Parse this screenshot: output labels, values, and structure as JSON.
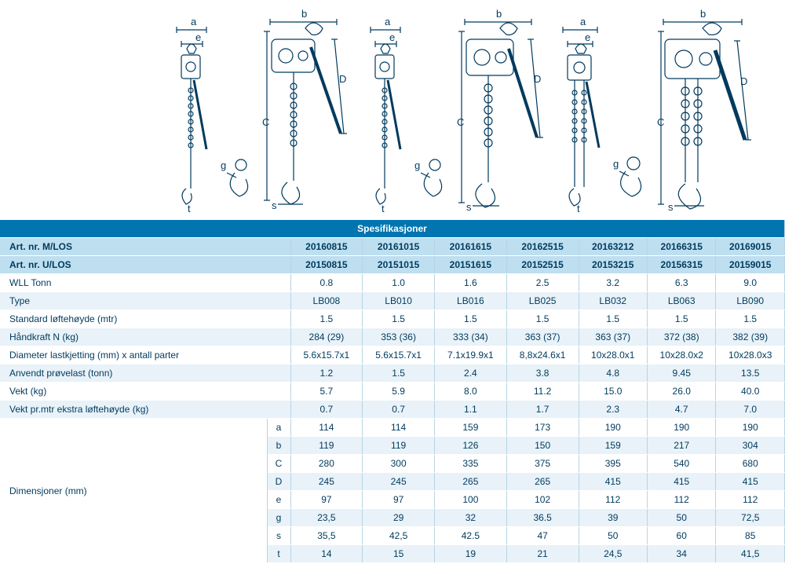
{
  "header": "Spesifikasjoner",
  "columns_mlos": [
    "20160815",
    "20161015",
    "20161615",
    "20162515",
    "20163212",
    "20166315",
    "20169015"
  ],
  "columns_ulos": [
    "20150815",
    "20151015",
    "20151615",
    "20152515",
    "20153215",
    "20156315",
    "20159015"
  ],
  "label_mlos": "Art. nr. M/LOS",
  "label_ulos": "Art. nr. U/LOS",
  "rows": [
    {
      "label": "WLL Tonn",
      "vals": [
        "0.8",
        "1.0",
        "1.6",
        "2.5",
        "3.2",
        "6.3",
        "9.0"
      ]
    },
    {
      "label": "Type",
      "vals": [
        "LB008",
        "LB010",
        "LB016",
        "LB025",
        "LB032",
        "LB063",
        "LB090"
      ]
    },
    {
      "label": "Standard løftehøyde (mtr)",
      "vals": [
        "1.5",
        "1.5",
        "1.5",
        "1.5",
        "1.5",
        "1.5",
        "1.5"
      ]
    },
    {
      "label": "Håndkraft N (kg)",
      "vals": [
        "284 (29)",
        "353 (36)",
        "333 (34)",
        "363 (37)",
        "363 (37)",
        "372 (38)",
        "382 (39)"
      ]
    },
    {
      "label": "Diameter lastkjetting (mm) x antall parter",
      "vals": [
        "5.6x15.7x1",
        "5.6x15.7x1",
        "7.1x19.9x1",
        "8,8x24.6x1",
        "10x28.0x1",
        "10x28.0x2",
        "10x28.0x3"
      ]
    },
    {
      "label": "Anvendt prøvelast (tonn)",
      "vals": [
        "1.2",
        "1.5",
        "2.4",
        "3.8",
        "4.8",
        "9.45",
        "13.5"
      ]
    },
    {
      "label": "Vekt (kg)",
      "vals": [
        "5.7",
        "5.9",
        "8.0",
        "11.2",
        "15.0",
        "26.0",
        "40.0"
      ]
    },
    {
      "label": "Vekt pr.mtr ekstra løftehøyde (kg)",
      "vals": [
        "0.7",
        "0.7",
        "1.1",
        "1.7",
        "2.3",
        "4.7",
        "7.0"
      ]
    }
  ],
  "dim_label": "Dimensjoner (mm)",
  "dim_rows": [
    {
      "k": "a",
      "vals": [
        "114",
        "114",
        "159",
        "173",
        "190",
        "190",
        "190"
      ]
    },
    {
      "k": "b",
      "vals": [
        "119",
        "119",
        "126",
        "150",
        "159",
        "217",
        "304"
      ]
    },
    {
      "k": "C",
      "vals": [
        "280",
        "300",
        "335",
        "375",
        "395",
        "540",
        "680"
      ]
    },
    {
      "k": "D",
      "vals": [
        "245",
        "245",
        "265",
        "265",
        "415",
        "415",
        "415"
      ]
    },
    {
      "k": "e",
      "vals": [
        "97",
        "97",
        "100",
        "102",
        "112",
        "112",
        "112"
      ]
    },
    {
      "k": "g",
      "vals": [
        "23,5",
        "29",
        "32",
        "36.5",
        "39",
        "50",
        "72,5"
      ]
    },
    {
      "k": "s",
      "vals": [
        "35,5",
        "42,5",
        "42.5",
        "47",
        "50",
        "60",
        "85"
      ]
    },
    {
      "k": "t",
      "vals": [
        "14",
        "15",
        "19",
        "21",
        "24,5",
        "34",
        "41,5"
      ]
    }
  ],
  "dim_letters": {
    "a": "a",
    "b": "b",
    "C": "C",
    "D": "D",
    "e": "e",
    "g": "g",
    "s": "s",
    "t": "t"
  }
}
